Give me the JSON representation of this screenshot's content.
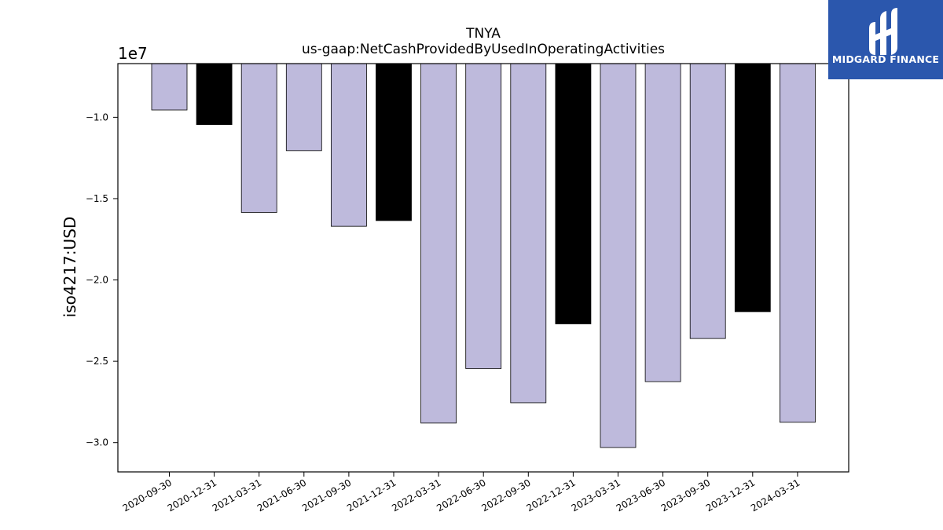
{
  "chart_data": {
    "type": "bar",
    "title": "TNYA",
    "subtitle": "us-gaap:NetCashProvidedByUsedInOperatingActivities",
    "ylabel": "iso4217:USD",
    "offset_text": "1e7",
    "categories": [
      "2020-09-30",
      "2020-12-31",
      "2021-03-31",
      "2021-06-30",
      "2021-09-30",
      "2021-12-31",
      "2022-03-31",
      "2022-06-30",
      "2022-09-30",
      "2022-12-31",
      "2023-03-31",
      "2023-06-30",
      "2023-09-30",
      "2023-12-31",
      "2024-03-31"
    ],
    "values": [
      -9550000,
      -10450000,
      -15850000,
      -12050000,
      -16700000,
      -16350000,
      -28800000,
      -25450000,
      -27550000,
      -22700000,
      -30300000,
      -26250000,
      -23600000,
      -21950000,
      -28750000
    ],
    "bar_colors": [
      "#bebadc",
      "#000000",
      "#bebadc",
      "#bebadc",
      "#bebadc",
      "#000000",
      "#bebadc",
      "#bebadc",
      "#bebadc",
      "#000000",
      "#bebadc",
      "#bebadc",
      "#bebadc",
      "#000000",
      "#bebadc"
    ],
    "yticks": [
      -10000000,
      -15000000,
      -20000000,
      -25000000,
      -30000000
    ],
    "ytick_labels": [
      "−1.0",
      "−1.5",
      "−2.0",
      "−2.5",
      "−3.0"
    ],
    "ylim": [
      -31800000,
      -6700000
    ],
    "grid": false,
    "legend": "none"
  },
  "logo": {
    "text": "MIDGARD FINANCE",
    "background": "#2b57ad"
  }
}
